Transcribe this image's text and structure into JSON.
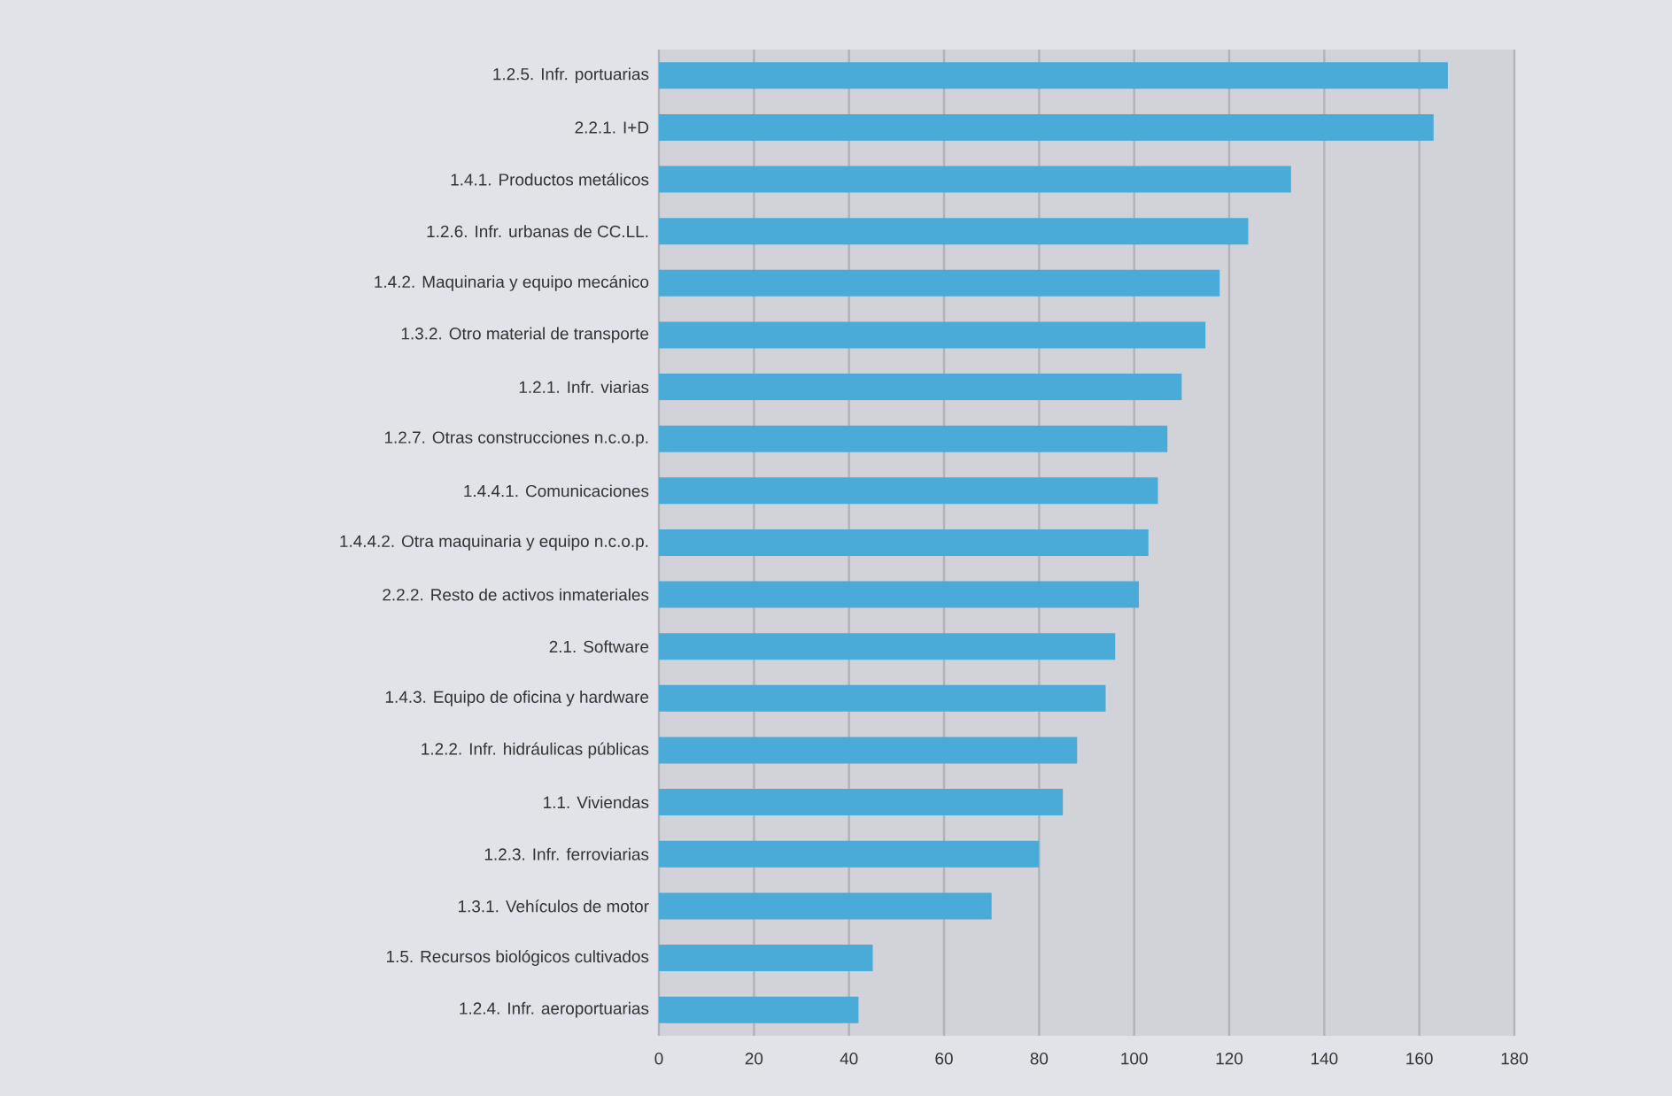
{
  "chart_data": {
    "type": "bar",
    "orientation": "horizontal",
    "color": "#4aaad8",
    "categories": [
      "1.2.5. Infr. portuarias",
      "2.2.1. I+D",
      "1.4.1. Productos metálicos",
      "1.2.6. Infr. urbanas de CC.LL.",
      "1.4.2. Maquinaria y equipo mecánico",
      "1.3.2. Otro material de transporte",
      "1.2.1. Infr. viarias",
      "1.2.7. Otras construcciones n.c.o.p.",
      "1.4.4.1. Comunicaciones",
      "1.4.4.2. Otra maquinaria y equipo n.c.o.p.",
      "2.2.2. Resto de activos inmateriales",
      "2.1. Software",
      "1.4.3. Equipo de oficina y hardware",
      "1.2.2. Infr. hidráulicas públicas",
      "1.1. Viviendas",
      "1.2.3. Infr. ferroviarias",
      "1.3.1. Vehículos de motor",
      "1.5. Recursos biológicos cultivados",
      "1.2.4. Infr. aeroportuarias"
    ],
    "values": [
      166,
      163,
      133,
      124,
      118,
      115,
      110,
      107,
      105,
      103,
      101,
      96,
      94,
      88,
      85,
      80,
      70,
      45,
      42
    ],
    "xlim": [
      0,
      180
    ],
    "xticks": [
      0,
      20,
      40,
      60,
      80,
      100,
      120,
      140,
      160,
      180
    ],
    "grid": "x"
  }
}
